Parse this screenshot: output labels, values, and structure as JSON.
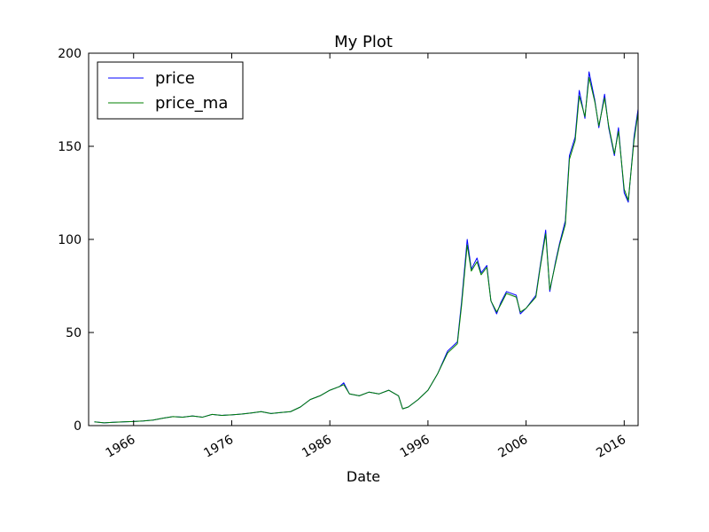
{
  "chart_data": {
    "type": "line",
    "title": "My Plot",
    "xlabel": "Date",
    "ylabel": "",
    "xlim": [
      "1961-06-01",
      "2017-06-01"
    ],
    "ylim": [
      0,
      200
    ],
    "x_ticks": [
      "1966",
      "1976",
      "1986",
      "1996",
      "2006",
      "2016"
    ],
    "y_ticks": [
      0,
      50,
      100,
      150,
      200
    ],
    "grid": false,
    "legend": {
      "placement": "top-left"
    },
    "x": [
      "1962-01",
      "1963-01",
      "1964-01",
      "1965-01",
      "1966-01",
      "1967-01",
      "1968-01",
      "1969-01",
      "1970-01",
      "1971-01",
      "1972-01",
      "1973-01",
      "1974-01",
      "1975-01",
      "1976-01",
      "1977-01",
      "1978-01",
      "1979-01",
      "1980-01",
      "1981-01",
      "1982-01",
      "1983-01",
      "1984-01",
      "1985-01",
      "1986-01",
      "1987-01",
      "1987-06",
      "1988-01",
      "1989-01",
      "1990-01",
      "1991-01",
      "1992-01",
      "1993-01",
      "1993-06",
      "1994-01",
      "1995-01",
      "1996-01",
      "1997-01",
      "1998-01",
      "1999-01",
      "1999-06",
      "2000-01",
      "2000-06",
      "2001-01",
      "2001-06",
      "2002-01",
      "2002-06",
      "2003-01",
      "2003-06",
      "2004-01",
      "2005-01",
      "2005-06",
      "2006-01",
      "2007-01",
      "2007-06",
      "2008-01",
      "2008-06",
      "2009-01",
      "2009-06",
      "2010-01",
      "2010-06",
      "2011-01",
      "2011-06",
      "2012-01",
      "2012-06",
      "2013-01",
      "2013-06",
      "2014-01",
      "2014-06",
      "2015-01",
      "2015-06",
      "2016-01",
      "2016-06",
      "2017-01",
      "2017-06"
    ],
    "series": [
      {
        "name": "price",
        "color": "#0000ff",
        "values": [
          2.0,
          1.5,
          1.8,
          2.0,
          2.2,
          2.5,
          3.0,
          4.0,
          4.8,
          4.5,
          5.2,
          4.5,
          6.0,
          5.5,
          5.8,
          6.2,
          6.8,
          7.5,
          6.5,
          7.0,
          7.5,
          10.0,
          14.0,
          16.0,
          19.0,
          21.0,
          23.0,
          17.0,
          16.0,
          18.0,
          17.0,
          19.0,
          16.0,
          9.0,
          10.0,
          14.0,
          19.0,
          28.0,
          40.0,
          45.0,
          66.0,
          100.0,
          84.0,
          90.0,
          82.0,
          86.0,
          67.0,
          60.0,
          66.0,
          72.0,
          70.0,
          60.0,
          63.0,
          70.0,
          85.0,
          105.0,
          72.0,
          88.0,
          98.0,
          110.0,
          145.0,
          155.0,
          180.0,
          165.0,
          190.0,
          175.0,
          160.0,
          178.0,
          160.0,
          145.0,
          160.0,
          125.0,
          120.0,
          155.0,
          170.0
        ]
      },
      {
        "name": "price_ma",
        "color": "#008000",
        "values": [
          2.0,
          1.5,
          1.8,
          2.0,
          2.2,
          2.5,
          3.0,
          4.0,
          4.8,
          4.5,
          5.2,
          4.5,
          6.0,
          5.5,
          5.8,
          6.2,
          6.8,
          7.5,
          6.5,
          7.0,
          7.5,
          10.0,
          14.0,
          16.0,
          19.0,
          21.0,
          22.0,
          17.0,
          16.0,
          18.0,
          17.0,
          19.0,
          16.0,
          9.0,
          10.0,
          14.0,
          19.0,
          28.0,
          39.0,
          44.0,
          64.0,
          97.0,
          83.0,
          88.0,
          81.0,
          85.0,
          67.0,
          61.0,
          65.0,
          71.0,
          69.0,
          61.0,
          63.0,
          69.0,
          84.0,
          103.0,
          73.0,
          87.0,
          97.0,
          108.0,
          143.0,
          153.0,
          177.0,
          166.0,
          187.0,
          174.0,
          161.0,
          176.0,
          161.0,
          146.0,
          158.0,
          127.0,
          121.0,
          153.0,
          168.0
        ]
      }
    ]
  }
}
